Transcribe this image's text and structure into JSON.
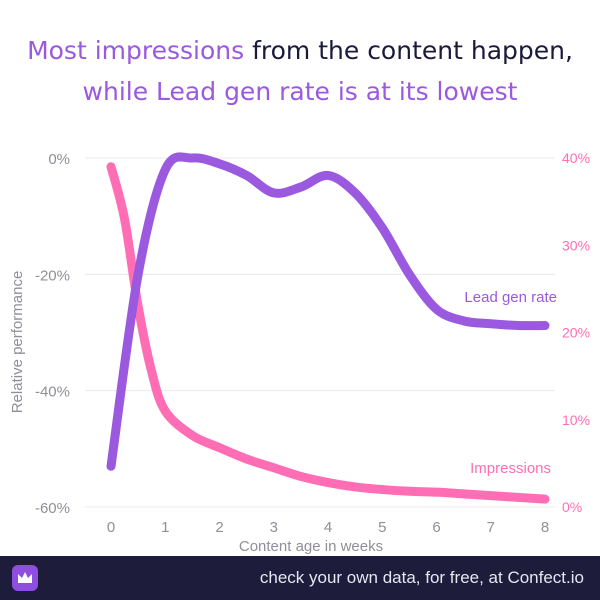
{
  "title": {
    "line1_highlight": "Most impressions",
    "line1_rest": " from the content happen,",
    "line2_highlight": "while Lead gen rate is at its lowest"
  },
  "footer": {
    "text": "check your own data, for free, at Confect.io"
  },
  "colors": {
    "lead_gen": "#9b59e0",
    "impressions": "#ff6eb4",
    "title_dark": "#1c1a3a"
  },
  "chart_data": {
    "type": "line",
    "xlabel": "Content age in weeks",
    "ylabel": "Relative performance",
    "x_ticks": [
      "0",
      "1",
      "2",
      "3",
      "4",
      "5",
      "6",
      "7",
      "8"
    ],
    "y_left_ticks": [
      "0%",
      "-20%",
      "-40%",
      "-60%"
    ],
    "y_right_ticks": [
      "40%",
      "30%",
      "20%",
      "10%",
      "0%"
    ],
    "y_left_range": [
      -60,
      0
    ],
    "y_right_range": [
      0,
      40
    ],
    "grid": true,
    "series": [
      {
        "name": "Lead gen rate",
        "axis": "left",
        "x": [
          0,
          0.5,
          1,
          1.5,
          2,
          2.5,
          3,
          3.5,
          4,
          4.5,
          5,
          5.5,
          6,
          6.5,
          7,
          7.5,
          8
        ],
        "values": [
          -53,
          -20,
          -2,
          0,
          -1,
          -3,
          -6,
          -5,
          -3,
          -6,
          -12,
          -20,
          -26,
          -28,
          -28.5,
          -28.8,
          -28.8
        ]
      },
      {
        "name": "Impressions",
        "axis": "right",
        "x": [
          0,
          0.25,
          0.5,
          0.75,
          1,
          1.5,
          2,
          2.5,
          3,
          3.5,
          4,
          4.5,
          5,
          5.5,
          6,
          6.5,
          7,
          7.5,
          8
        ],
        "values": [
          39,
          33,
          23,
          15.5,
          11,
          8.2,
          6.8,
          5.5,
          4.5,
          3.5,
          2.8,
          2.3,
          2,
          1.8,
          1.7,
          1.5,
          1.3,
          1.1,
          0.9
        ]
      }
    ]
  }
}
